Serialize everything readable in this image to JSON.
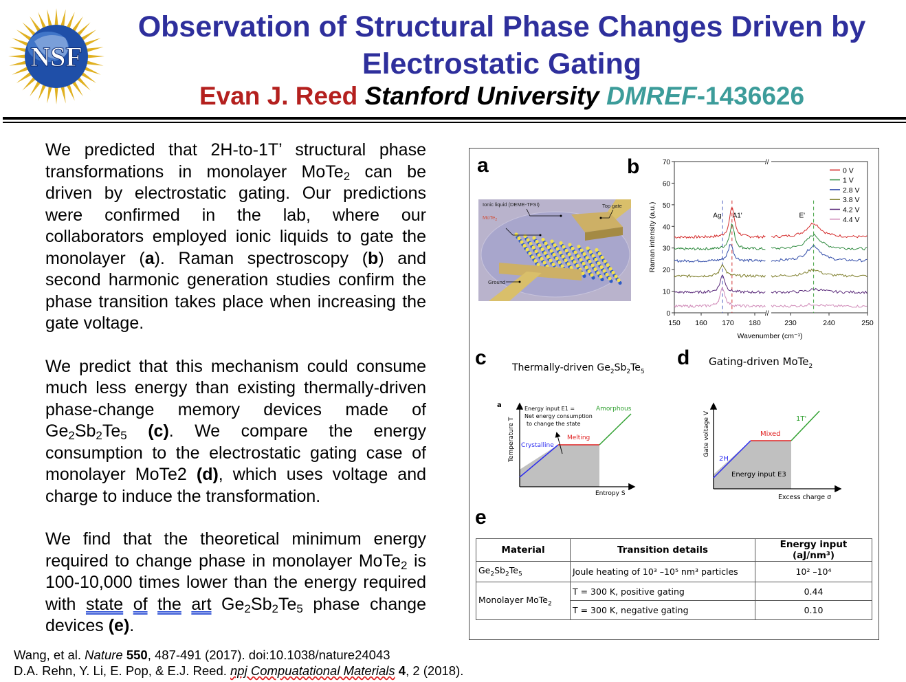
{
  "header": {
    "logo_text": "NSF",
    "title_line1": "Observation of Structural Phase Changes Driven by",
    "title_line2": "Electrostatic Gating",
    "author": "Evan J. Reed",
    "institution": "Stanford University",
    "grant_prefix": "DMREF",
    "grant_number": "-1436626",
    "colors": {
      "title": "#2e2f9c",
      "author": "#b4201e",
      "grant": "#3c9c9a"
    }
  },
  "body": {
    "paragraphs": [
      [
        {
          "t": "We predicted that 2H-to-1T’ structural phase transformations in monolayer MoTe"
        },
        {
          "t": "2",
          "s": "sub"
        },
        {
          "t": " can be driven by electrostatic gating. Our predictions were confirmed in the lab, where our collaborators employed ionic liquids to gate the monolayer ("
        },
        {
          "t": "a",
          "s": "b"
        },
        {
          "t": "). Raman spectroscopy ("
        },
        {
          "t": "b",
          "s": "b"
        },
        {
          "t": ") and second harmonic generation studies confirm the phase transition takes place when increasing the gate voltage."
        }
      ],
      [
        {
          "t": "We predict that this mechanism could consume much less energy than existing thermally-driven phase-change memory devices made of Ge"
        },
        {
          "t": "2",
          "s": "sub"
        },
        {
          "t": "Sb"
        },
        {
          "t": "2",
          "s": "sub"
        },
        {
          "t": "Te"
        },
        {
          "t": "5",
          "s": "sub"
        },
        {
          "t": " "
        },
        {
          "t": "(c)",
          "s": "b"
        },
        {
          "t": ". We compare the energy consumption to the electrostatic gating case of monolayer MoTe2 "
        },
        {
          "t": "(d)",
          "s": "b"
        },
        {
          "t": ", which uses voltage and charge to induce the transformation."
        }
      ],
      [
        {
          "t": "We find that the theoretical minimum energy required to change phase in monolayer MoTe"
        },
        {
          "t": "2",
          "s": "sub"
        },
        {
          "t": " is 100-10,000 times lower than the energy required with "
        },
        {
          "t": "state",
          "s": "u"
        },
        {
          "t": " "
        },
        {
          "t": "of",
          "s": "u"
        },
        {
          "t": " "
        },
        {
          "t": "the",
          "s": "u"
        },
        {
          "t": " "
        },
        {
          "t": "art",
          "s": "u"
        },
        {
          "t": " Ge"
        },
        {
          "t": "2",
          "s": "sub"
        },
        {
          "t": "Sb"
        },
        {
          "t": "2",
          "s": "sub"
        },
        {
          "t": "Te"
        },
        {
          "t": "5",
          "s": "sub"
        },
        {
          "t": " phase change devices "
        },
        {
          "t": "(e)",
          "s": "b"
        },
        {
          "t": "."
        }
      ]
    ]
  },
  "figure": {
    "panel_labels": {
      "a": "a",
      "b": "b",
      "c": "c",
      "d": "d",
      "e": "e"
    },
    "panel_a": {
      "ionic_liquid": "Ionic liquid (DEME-TFSI)",
      "material": "MoTe2",
      "top_gate": "Top gate",
      "ground": "Ground"
    },
    "panel_c": {
      "title": "Thermally-driven Ge2Sb2Te5",
      "sub_label": "a",
      "ylabel": "Temperature T",
      "xlabel": "Entropy S",
      "energy_l1": "Energy input  E1 =",
      "energy_l2": "Net energy consumption",
      "energy_l3": "to change the state",
      "crystalline": "Crystalline",
      "melting": "Melting",
      "amorphous": "Amorphous"
    },
    "panel_d": {
      "title": "Gating-driven MoTe2",
      "ylabel": "Gate voltage V",
      "xlabel": "Excess charge σ",
      "phase_2h": "2H",
      "mixed": "Mixed",
      "phase_1t": "1T'",
      "energy": "Energy input E3"
    },
    "table": {
      "headers": [
        "Material",
        "Transition details",
        "Energy input (aJ/nm³)"
      ],
      "row1": {
        "material": "Ge2Sb2Te5",
        "details": "Joule heating of 10³ –10⁵ nm³ particles",
        "energy": "10² –10⁴"
      },
      "row2": {
        "material": "Monolayer MoTe2",
        "details_a": "T = 300 K, positive gating",
        "energy_a": "0.44",
        "details_b": "T = 300 K, negative gating",
        "energy_b": "0.10"
      }
    }
  },
  "chart_data": {
    "type": "line",
    "xlabel": "Wavenumber (cm⁻¹)",
    "ylabel": "Raman intensity (a.u.)",
    "ylim": [
      0,
      70
    ],
    "yticks": [
      0,
      10,
      20,
      30,
      40,
      50,
      60,
      70
    ],
    "xticks": [
      150,
      160,
      170,
      180,
      230,
      240,
      250
    ],
    "x_segments": [
      [
        150,
        184
      ],
      [
        225,
        250
      ]
    ],
    "axis_break": true,
    "legend_position": "top-right",
    "peak_labels": [
      {
        "text": "Ag",
        "x": 166
      },
      {
        "text": "A1'",
        "x": 173.5
      },
      {
        "text": "E'",
        "x": 233
      }
    ],
    "reference_lines": [
      {
        "x": 168,
        "color": "#5060c0"
      },
      {
        "x": 171.5,
        "color": "#d03030"
      },
      {
        "x": 236,
        "color": "#40a040"
      }
    ],
    "series": [
      {
        "name": "0 V",
        "color": "#d42a2a",
        "baseline": 35,
        "peaks": [
          {
            "x": 171.5,
            "y": 49
          },
          {
            "x": 236,
            "y": 41.5
          }
        ]
      },
      {
        "name": "1 V",
        "color": "#2e8a3e",
        "baseline": 29.5,
        "peaks": [
          {
            "x": 171.5,
            "y": 41
          },
          {
            "x": 236,
            "y": 36
          }
        ]
      },
      {
        "name": "2.8 V",
        "color": "#2f4aa8",
        "baseline": 24,
        "peaks": [
          {
            "x": 171,
            "y": 32
          },
          {
            "x": 236,
            "y": 31
          }
        ]
      },
      {
        "name": "3.8 V",
        "color": "#7c7c28",
        "baseline": 17,
        "peaks": [
          {
            "x": 168,
            "y": 22.5
          },
          {
            "x": 236,
            "y": 20
          }
        ]
      },
      {
        "name": "4.2 V",
        "color": "#5a2a7a",
        "baseline": 9.5,
        "peaks": [
          {
            "x": 168,
            "y": 17.5
          },
          {
            "x": 236.5,
            "y": 11
          }
        ]
      },
      {
        "name": "4.4 V",
        "color": "#d08ab8",
        "baseline": 3,
        "peaks": [
          {
            "x": 168,
            "y": 11.5
          },
          {
            "x": 236,
            "y": 4
          }
        ]
      }
    ]
  },
  "citations": {
    "c1_a": "Wang, et al. ",
    "c1_journal": "Nature",
    "c1_vol": " 550",
    "c1_b": ", 487-491 (2017). doi:10.1038/nature24043",
    "c2_a": "D.A. Rehn, Y. Li, E. Pop, & E.J. Reed. ",
    "c2_journal": "npj Compuatational Materials",
    "c2_vol": " 4",
    "c2_b": ", 2 (2018)."
  }
}
